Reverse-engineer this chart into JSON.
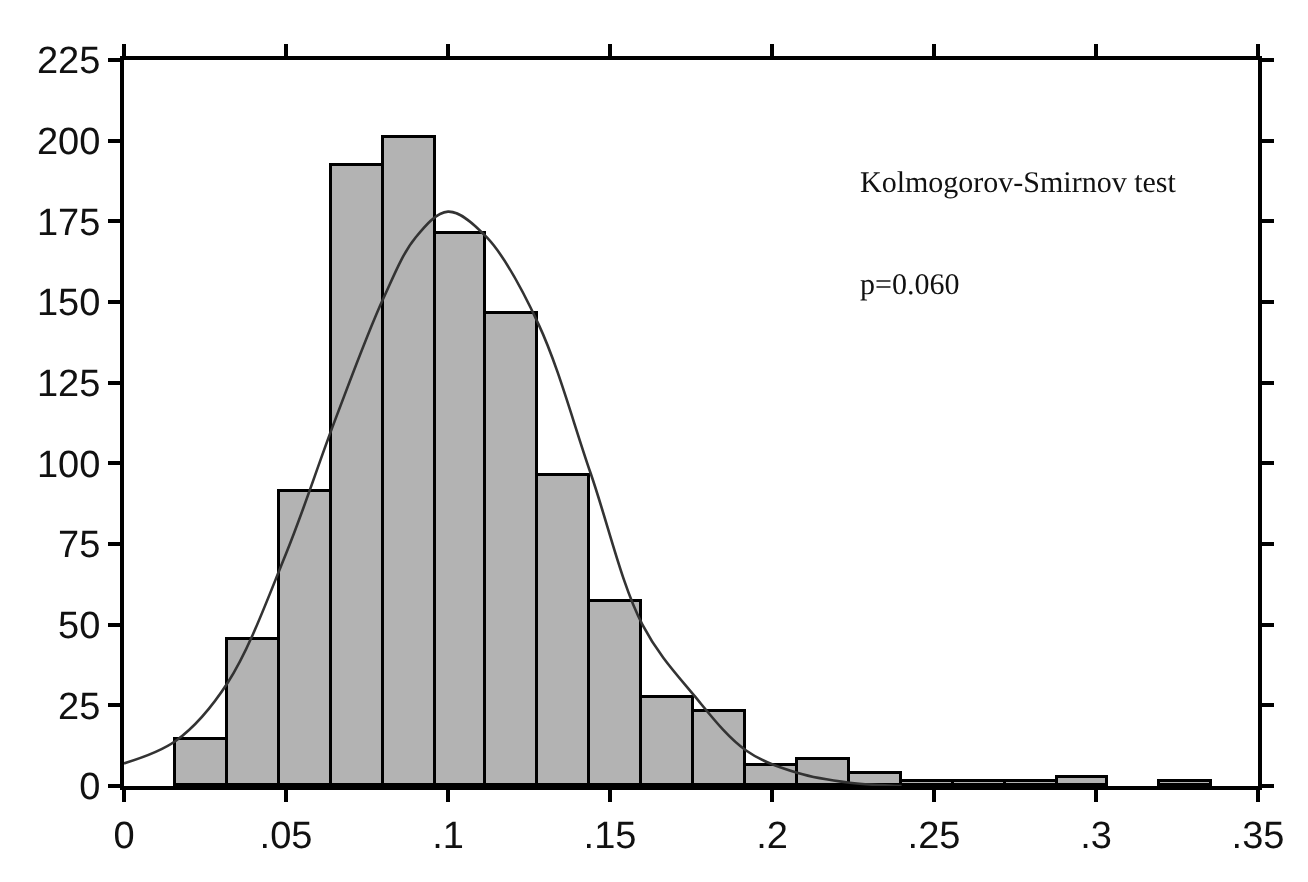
{
  "chart_data": {
    "type": "histogram",
    "series": [
      {
        "color": "#b3b3b3",
        "bins": [
          0.016,
          0.032,
          0.048,
          0.064,
          0.08,
          0.096,
          0.112,
          0.128,
          0.144,
          0.16,
          0.176,
          0.192,
          0.208,
          0.224,
          0.24,
          0.256,
          0.272,
          0.288,
          0.304,
          0.32,
          0.336
        ],
        "values": [
          14,
          45,
          91,
          192,
          201,
          171,
          146,
          96,
          57,
          27,
          23,
          6,
          8,
          3.5,
          1,
          1,
          1,
          2.5,
          0,
          1.5
        ]
      },
      {
        "type": "line",
        "color": "#333333",
        "x": [
          0,
          0.016,
          0.032,
          0.05,
          0.065,
          0.08,
          0.09,
          0.1,
          0.112,
          0.128,
          0.144,
          0.16,
          0.176,
          0.192,
          0.208,
          0.224,
          0.24
        ],
        "values": [
          7,
          14,
          32,
          72,
          113,
          151,
          170,
          178,
          170,
          143,
          97,
          50,
          28,
          11,
          4,
          1,
          0
        ]
      }
    ],
    "xlim": [
      0,
      0.35
    ],
    "xticks": [
      0,
      {
        "value": 0.05,
        "label": ".05"
      },
      {
        "value": 0.1,
        "label": ".1"
      },
      {
        "value": 0.15,
        "label": ".15"
      },
      {
        "value": 0.2,
        "label": ".2"
      },
      {
        "value": 0.25,
        "label": ".25"
      },
      {
        "value": 0.3,
        "label": ".3"
      },
      {
        "value": 0.35,
        "label": ".35"
      }
    ],
    "ylim": [
      0,
      225
    ],
    "yticks": [
      0,
      25,
      50,
      75,
      100,
      125,
      150,
      175,
      200,
      225
    ],
    "annotations": [
      "Kolmogorov-Smirnov test",
      "p=0.060"
    ]
  }
}
